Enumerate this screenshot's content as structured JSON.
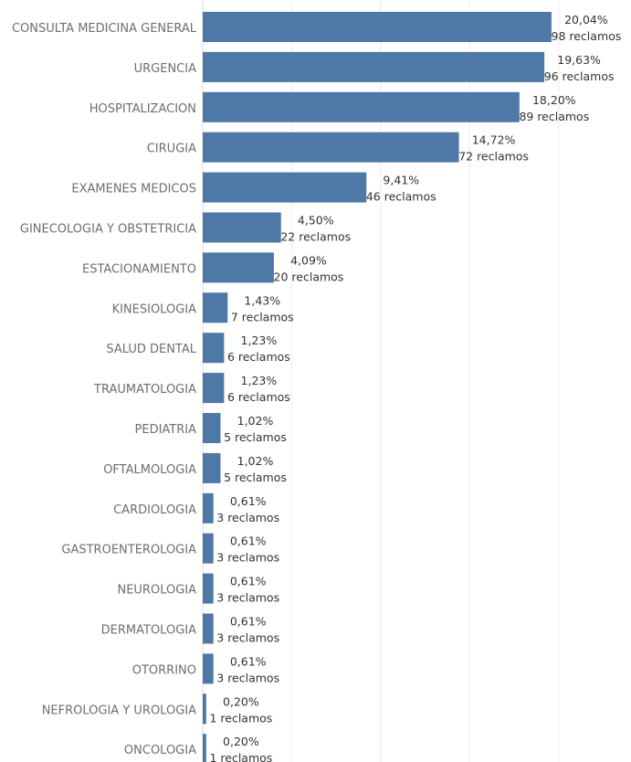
{
  "chart_data": {
    "type": "bar",
    "orientation": "horizontal",
    "bar_color": "#4e79a7",
    "grid": true,
    "xlim": [
      0,
      100
    ],
    "categories": [
      "CONSULTA MEDICINA GENERAL",
      "URGENCIA",
      "HOSPITALIZACION",
      "CIRUGIA",
      "EXAMENES MEDICOS",
      "GINECOLOGIA Y OBSTETRICIA",
      "ESTACIONAMIENTO",
      "KINESIOLOGIA",
      "SALUD DENTAL",
      "TRAUMATOLOGIA",
      "PEDIATRIA",
      "OFTALMOLOGIA",
      "CARDIOLOGIA",
      "GASTROENTEROLOGIA",
      "NEUROLOGIA",
      "DERMATOLOGIA",
      "OTORRINO",
      "NEFROLOGIA Y UROLOGIA",
      "ONCOLOGIA"
    ],
    "values": [
      98,
      96,
      89,
      72,
      46,
      22,
      20,
      7,
      6,
      6,
      5,
      5,
      3,
      3,
      3,
      3,
      3,
      1,
      1
    ],
    "percent_labels": [
      "20,04%",
      "19,63%",
      "18,20%",
      "14,72%",
      "9,41%",
      "4,50%",
      "4,09%",
      "1,43%",
      "1,23%",
      "1,23%",
      "1,02%",
      "1,02%",
      "0,61%",
      "0,61%",
      "0,61%",
      "0,61%",
      "0,61%",
      "0,20%",
      "0,20%"
    ],
    "count_labels": [
      "98 reclamos",
      "96 reclamos",
      "89 reclamos",
      "72 reclamos",
      "46 reclamos",
      "22 reclamos",
      "20 reclamos",
      "7 reclamos",
      "6 reclamos",
      "6 reclamos",
      "5 reclamos",
      "5 reclamos",
      "3 reclamos",
      "3 reclamos",
      "3 reclamos",
      "3 reclamos",
      "3 reclamos",
      "1 reclamos",
      "1 reclamos"
    ]
  }
}
